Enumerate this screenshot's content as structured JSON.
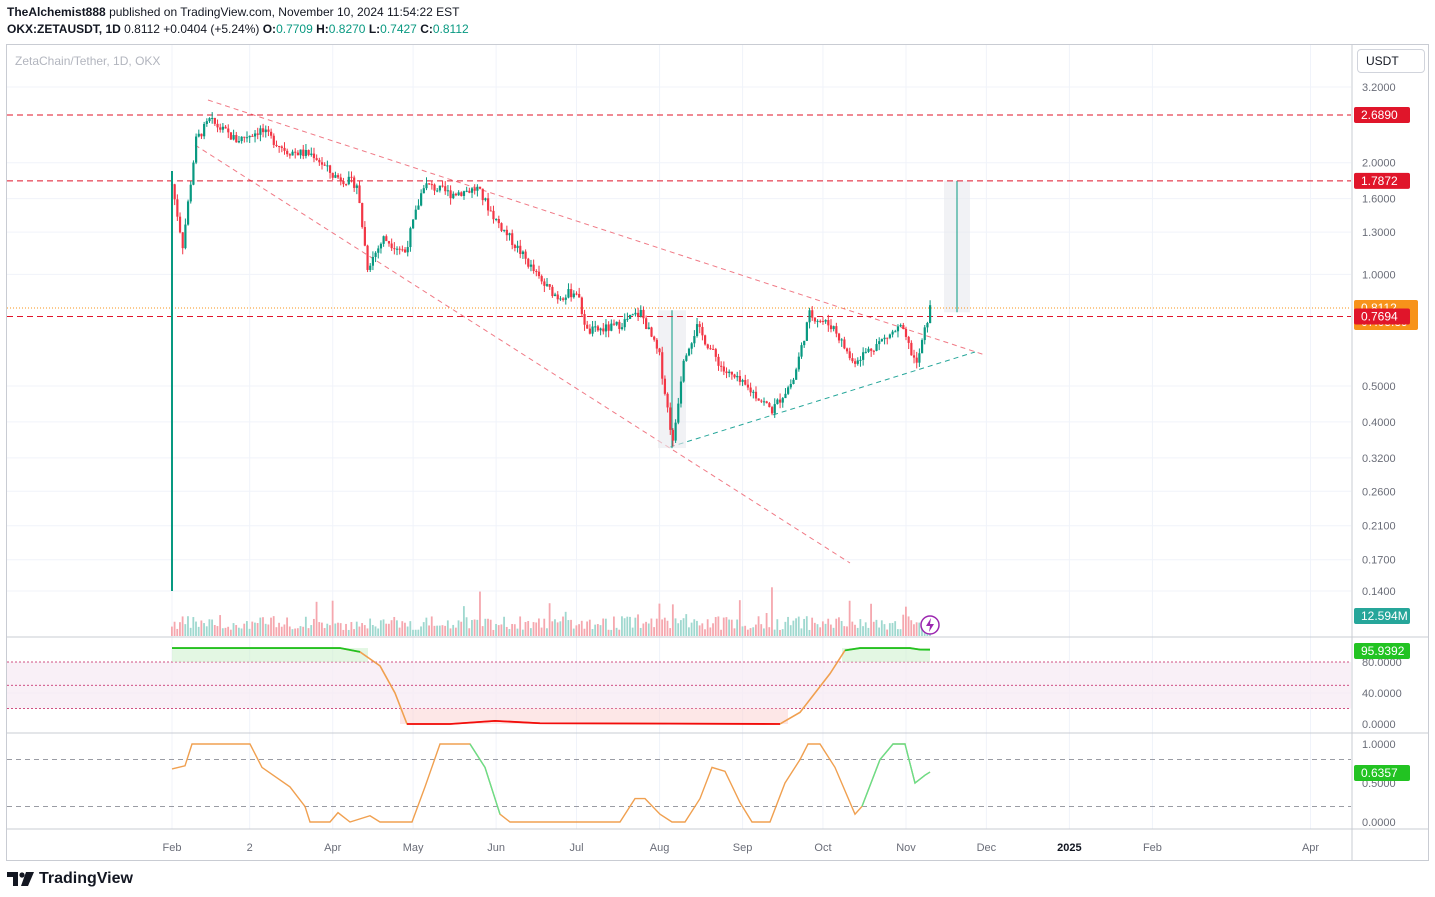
{
  "header": {
    "author": "TheAlchemist888",
    "published_text": "published on TradingView.com, November 10, 2024 11:54:22 EST",
    "symbol": "OKX:ZETAUSDT, 1D",
    "last": "0.8112",
    "change": "+0.0404 (+5.24%)",
    "open_label": "O:",
    "open": "0.7709",
    "high_label": "H:",
    "high": "0.8270",
    "low_label": "L:",
    "low": "0.7427",
    "close_label": "C:",
    "close": "0.8112"
  },
  "chart_title": "ZetaChain/Tether, 1D, OKX",
  "currency_button": "USDT",
  "footer": {
    "brand": "TradingView"
  },
  "colors": {
    "up": "#089981",
    "down": "#f23645",
    "level": "#e0152a",
    "price_badge": "#f7931a",
    "volume_badge": "#26a69a",
    "rsi_green": "#22c322",
    "rsi_red": "#f20c0c"
  },
  "chart_data": {
    "type": "candlestick",
    "price_axis": {
      "scale": "log",
      "ticks": [
        "3.2000",
        "2.0000",
        "1.6000",
        "1.3000",
        "1.0000",
        "0.5000",
        "0.4000",
        "0.3200",
        "0.2600",
        "0.2100",
        "0.1700",
        "0.1400"
      ],
      "tick_values": [
        3.2,
        2.0,
        1.6,
        1.3,
        1.0,
        0.5,
        0.4,
        0.32,
        0.26,
        0.21,
        0.17,
        0.14
      ]
    },
    "x_axis": {
      "ticks": [
        "Feb",
        "2",
        "Apr",
        "May",
        "Jun",
        "Jul",
        "Aug",
        "Sep",
        "Oct",
        "Nov",
        "Dec",
        "2025",
        "Feb",
        "Apr"
      ],
      "bold": [
        "2025"
      ]
    },
    "price_labels": [
      {
        "label": "2.6890",
        "value": 2.689,
        "kind": "level"
      },
      {
        "label": "1.7872",
        "value": 1.7872,
        "kind": "level"
      },
      {
        "label": "0.8112",
        "value": 0.8112,
        "kind": "last",
        "countdown": "07:05:39"
      },
      {
        "label": "0.7694",
        "value": 0.7694,
        "kind": "level"
      }
    ],
    "volume": {
      "last_label": "12.594M"
    },
    "osc1": {
      "value_label": "95.9392",
      "ticks": [
        "80.0000",
        "40.0000",
        "0.0000"
      ],
      "tick_values": [
        80,
        40,
        0
      ],
      "upper_band": 80,
      "lower_band": 20
    },
    "osc2": {
      "value_label": "0.6357",
      "ticks": [
        "1.0000",
        "0.5000",
        "0.0000"
      ],
      "tick_values": [
        1,
        0.5,
        0
      ],
      "upper_band": 0.8,
      "lower_band": 0.2
    },
    "approx_price_path": [
      [
        "2024-02-01",
        1.75
      ],
      [
        "2024-02-05",
        1.2
      ],
      [
        "2024-02-10",
        2.3
      ],
      [
        "2024-02-15",
        2.6
      ],
      [
        "2024-02-25",
        2.3
      ],
      [
        "2024-03-05",
        2.45
      ],
      [
        "2024-03-15",
        2.15
      ],
      [
        "2024-03-25",
        2.1
      ],
      [
        "2024-04-01",
        1.85
      ],
      [
        "2024-04-10",
        1.75
      ],
      [
        "2024-04-14",
        1.05
      ],
      [
        "2024-04-20",
        1.25
      ],
      [
        "2024-04-28",
        1.15
      ],
      [
        "2024-05-05",
        1.75
      ],
      [
        "2024-05-15",
        1.65
      ],
      [
        "2024-05-25",
        1.7
      ],
      [
        "2024-06-01",
        1.4
      ],
      [
        "2024-06-10",
        1.15
      ],
      [
        "2024-06-18",
        0.95
      ],
      [
        "2024-06-24",
        0.87
      ],
      [
        "2024-07-01",
        0.9
      ],
      [
        "2024-07-05",
        0.7
      ],
      [
        "2024-07-15",
        0.72
      ],
      [
        "2024-07-25",
        0.79
      ],
      [
        "2024-08-01",
        0.6
      ],
      [
        "2024-08-06",
        0.35
      ],
      [
        "2024-08-10",
        0.6
      ],
      [
        "2024-08-15",
        0.72
      ],
      [
        "2024-08-25",
        0.55
      ],
      [
        "2024-09-05",
        0.48
      ],
      [
        "2024-09-12",
        0.43
      ],
      [
        "2024-09-20",
        0.52
      ],
      [
        "2024-09-26",
        0.78
      ],
      [
        "2024-10-05",
        0.72
      ],
      [
        "2024-10-12",
        0.58
      ],
      [
        "2024-10-20",
        0.64
      ],
      [
        "2024-10-30",
        0.72
      ],
      [
        "2024-11-05",
        0.57
      ],
      [
        "2024-11-10",
        0.81
      ]
    ]
  }
}
